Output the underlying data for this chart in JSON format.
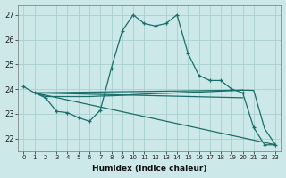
{
  "xlabel": "Humidex (Indice chaleur)",
  "ylabel": "",
  "bg_color": "#cce8e8",
  "grid_color": "#aad0d0",
  "line_color": "#1a6e6a",
  "xlim": [
    -0.5,
    23.5
  ],
  "ylim": [
    21.5,
    27.4
  ],
  "xticks": [
    0,
    1,
    2,
    3,
    4,
    5,
    6,
    7,
    8,
    9,
    10,
    11,
    12,
    13,
    14,
    15,
    16,
    17,
    18,
    19,
    20,
    21,
    22,
    23
  ],
  "yticks": [
    22,
    23,
    24,
    25,
    26,
    27
  ],
  "line1_x": [
    0,
    1,
    2,
    3,
    4,
    5,
    6,
    7,
    8,
    9,
    10,
    11,
    12,
    13,
    14,
    15,
    16,
    17,
    18,
    19,
    20,
    21,
    22,
    23
  ],
  "line1_y": [
    24.1,
    23.85,
    23.65,
    23.1,
    23.05,
    22.85,
    22.7,
    23.15,
    24.85,
    26.35,
    27.0,
    26.65,
    26.55,
    26.65,
    27.0,
    25.45,
    24.55,
    24.35,
    24.35,
    24.0,
    23.85,
    22.45,
    21.75,
    21.75
  ],
  "line2_x": [
    1,
    2,
    3,
    4,
    5,
    6,
    7,
    8,
    9,
    10,
    11,
    12,
    13,
    14,
    15,
    16,
    17,
    18,
    19,
    20
  ],
  "line2_y": [
    23.85,
    23.7,
    23.7,
    23.7,
    23.7,
    23.7,
    23.72,
    23.73,
    23.75,
    23.78,
    23.8,
    23.82,
    23.83,
    23.85,
    23.87,
    23.88,
    23.9,
    23.92,
    23.94,
    23.96
  ],
  "line3_x": [
    1,
    20
  ],
  "line3_y": [
    23.85,
    23.96
  ],
  "line4_x": [
    1,
    20
  ],
  "line4_y": [
    23.85,
    23.65
  ],
  "line5_x": [
    1,
    23
  ],
  "line5_y": [
    23.85,
    21.75
  ],
  "line6_x": [
    20,
    21,
    22,
    23
  ],
  "line6_y": [
    23.96,
    23.95,
    22.4,
    21.75
  ]
}
